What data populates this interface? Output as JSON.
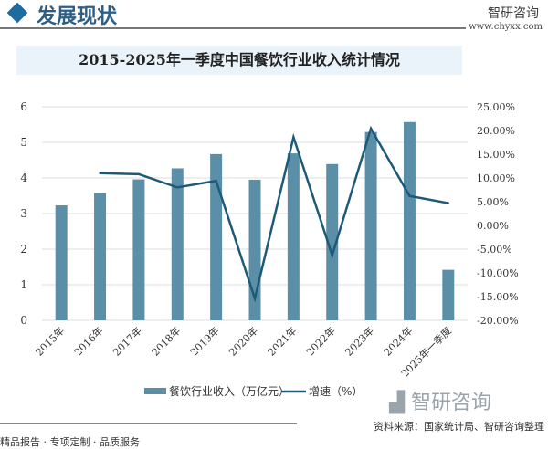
{
  "header": {
    "section_title": "发展现状",
    "brand": "智研咨询",
    "url": "www.chyxx.com"
  },
  "footer": {
    "slogan": "精品报告 · 专项定制 · 品质服务",
    "source": "资料来源：国家统计局、智研咨询整理",
    "watermark": "智研咨询"
  },
  "colors": {
    "bar": "#5b8fa8",
    "line": "#1c5a78",
    "accent": "#1f6aa0"
  },
  "chart_data": {
    "type": "bar+line",
    "title": "2015-2025年一季度中国餐饮行业收入统计情况",
    "categories": [
      "2015年",
      "2016年",
      "2017年",
      "2018年",
      "2019年",
      "2020年",
      "2021年",
      "2022年",
      "2023年",
      "2024年",
      "2025年一季度"
    ],
    "series": [
      {
        "name": "餐饮行业收入（万亿元）",
        "type": "bar",
        "axis": "left",
        "values": [
          3.23,
          3.58,
          3.96,
          4.27,
          4.67,
          3.95,
          4.69,
          4.39,
          5.29,
          5.57,
          1.42
        ]
      },
      {
        "name": "增速（%）",
        "type": "line",
        "axis": "right",
        "values": [
          null,
          11.0,
          10.8,
          8.0,
          9.4,
          -15.4,
          18.6,
          -6.3,
          20.4,
          6.2,
          4.7
        ]
      }
    ],
    "left_axis": {
      "range": [
        0,
        6
      ],
      "ticks": [
        "0",
        "1",
        "2",
        "3",
        "4",
        "5",
        "6"
      ]
    },
    "right_axis": {
      "range": [
        -20,
        25
      ],
      "ticks": [
        "-20.00%",
        "-15.00%",
        "-10.00%",
        "-5.00%",
        "0.00%",
        "5.00%",
        "10.00%",
        "15.00%",
        "20.00%",
        "25.00%"
      ]
    },
    "grid": true,
    "legend": "bottom"
  }
}
